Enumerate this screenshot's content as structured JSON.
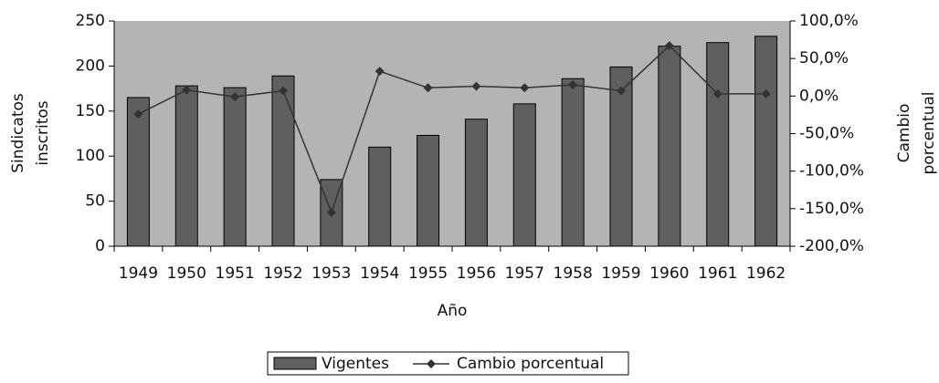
{
  "chart_data": {
    "type": "bar_line",
    "xlabel": "Año",
    "ylabel": [
      "Sindicatos",
      "inscritos"
    ],
    "y2label": [
      "Cambio",
      "porcentual"
    ],
    "categories": [
      "1949",
      "1950",
      "1951",
      "1952",
      "1953",
      "1954",
      "1955",
      "1956",
      "1957",
      "1958",
      "1959",
      "1960",
      "1961",
      "1962"
    ],
    "series": [
      {
        "name": "Vigentes",
        "type": "bar",
        "color": "#5f5f5f",
        "values": [
          165,
          178,
          176,
          189,
          74,
          110,
          123,
          141,
          158,
          186,
          199,
          222,
          226,
          233
        ]
      },
      {
        "name": "Cambio porcentual",
        "type": "line",
        "axis": "y2",
        "color": "#333333",
        "values": [
          -24,
          8,
          -1,
          7,
          -155,
          33,
          11,
          13,
          11,
          15,
          7,
          67,
          3,
          3
        ]
      }
    ],
    "ylim": [
      0,
      250
    ],
    "yticks": [
      0,
      50,
      100,
      150,
      200,
      250
    ],
    "y2lim": [
      -200,
      100
    ],
    "y2ticks": [
      {
        "value": -200,
        "label": "-200,0%"
      },
      {
        "value": -150,
        "label": "-150,0%"
      },
      {
        "value": -100,
        "label": "-100,0%"
      },
      {
        "value": -50,
        "label": "-50,0%"
      },
      {
        "value": 0,
        "label": "0,0%"
      },
      {
        "value": 50,
        "label": "50,0%"
      },
      {
        "value": 100,
        "label": "100,0%"
      }
    ],
    "plot_background": "#b4b4b4"
  }
}
